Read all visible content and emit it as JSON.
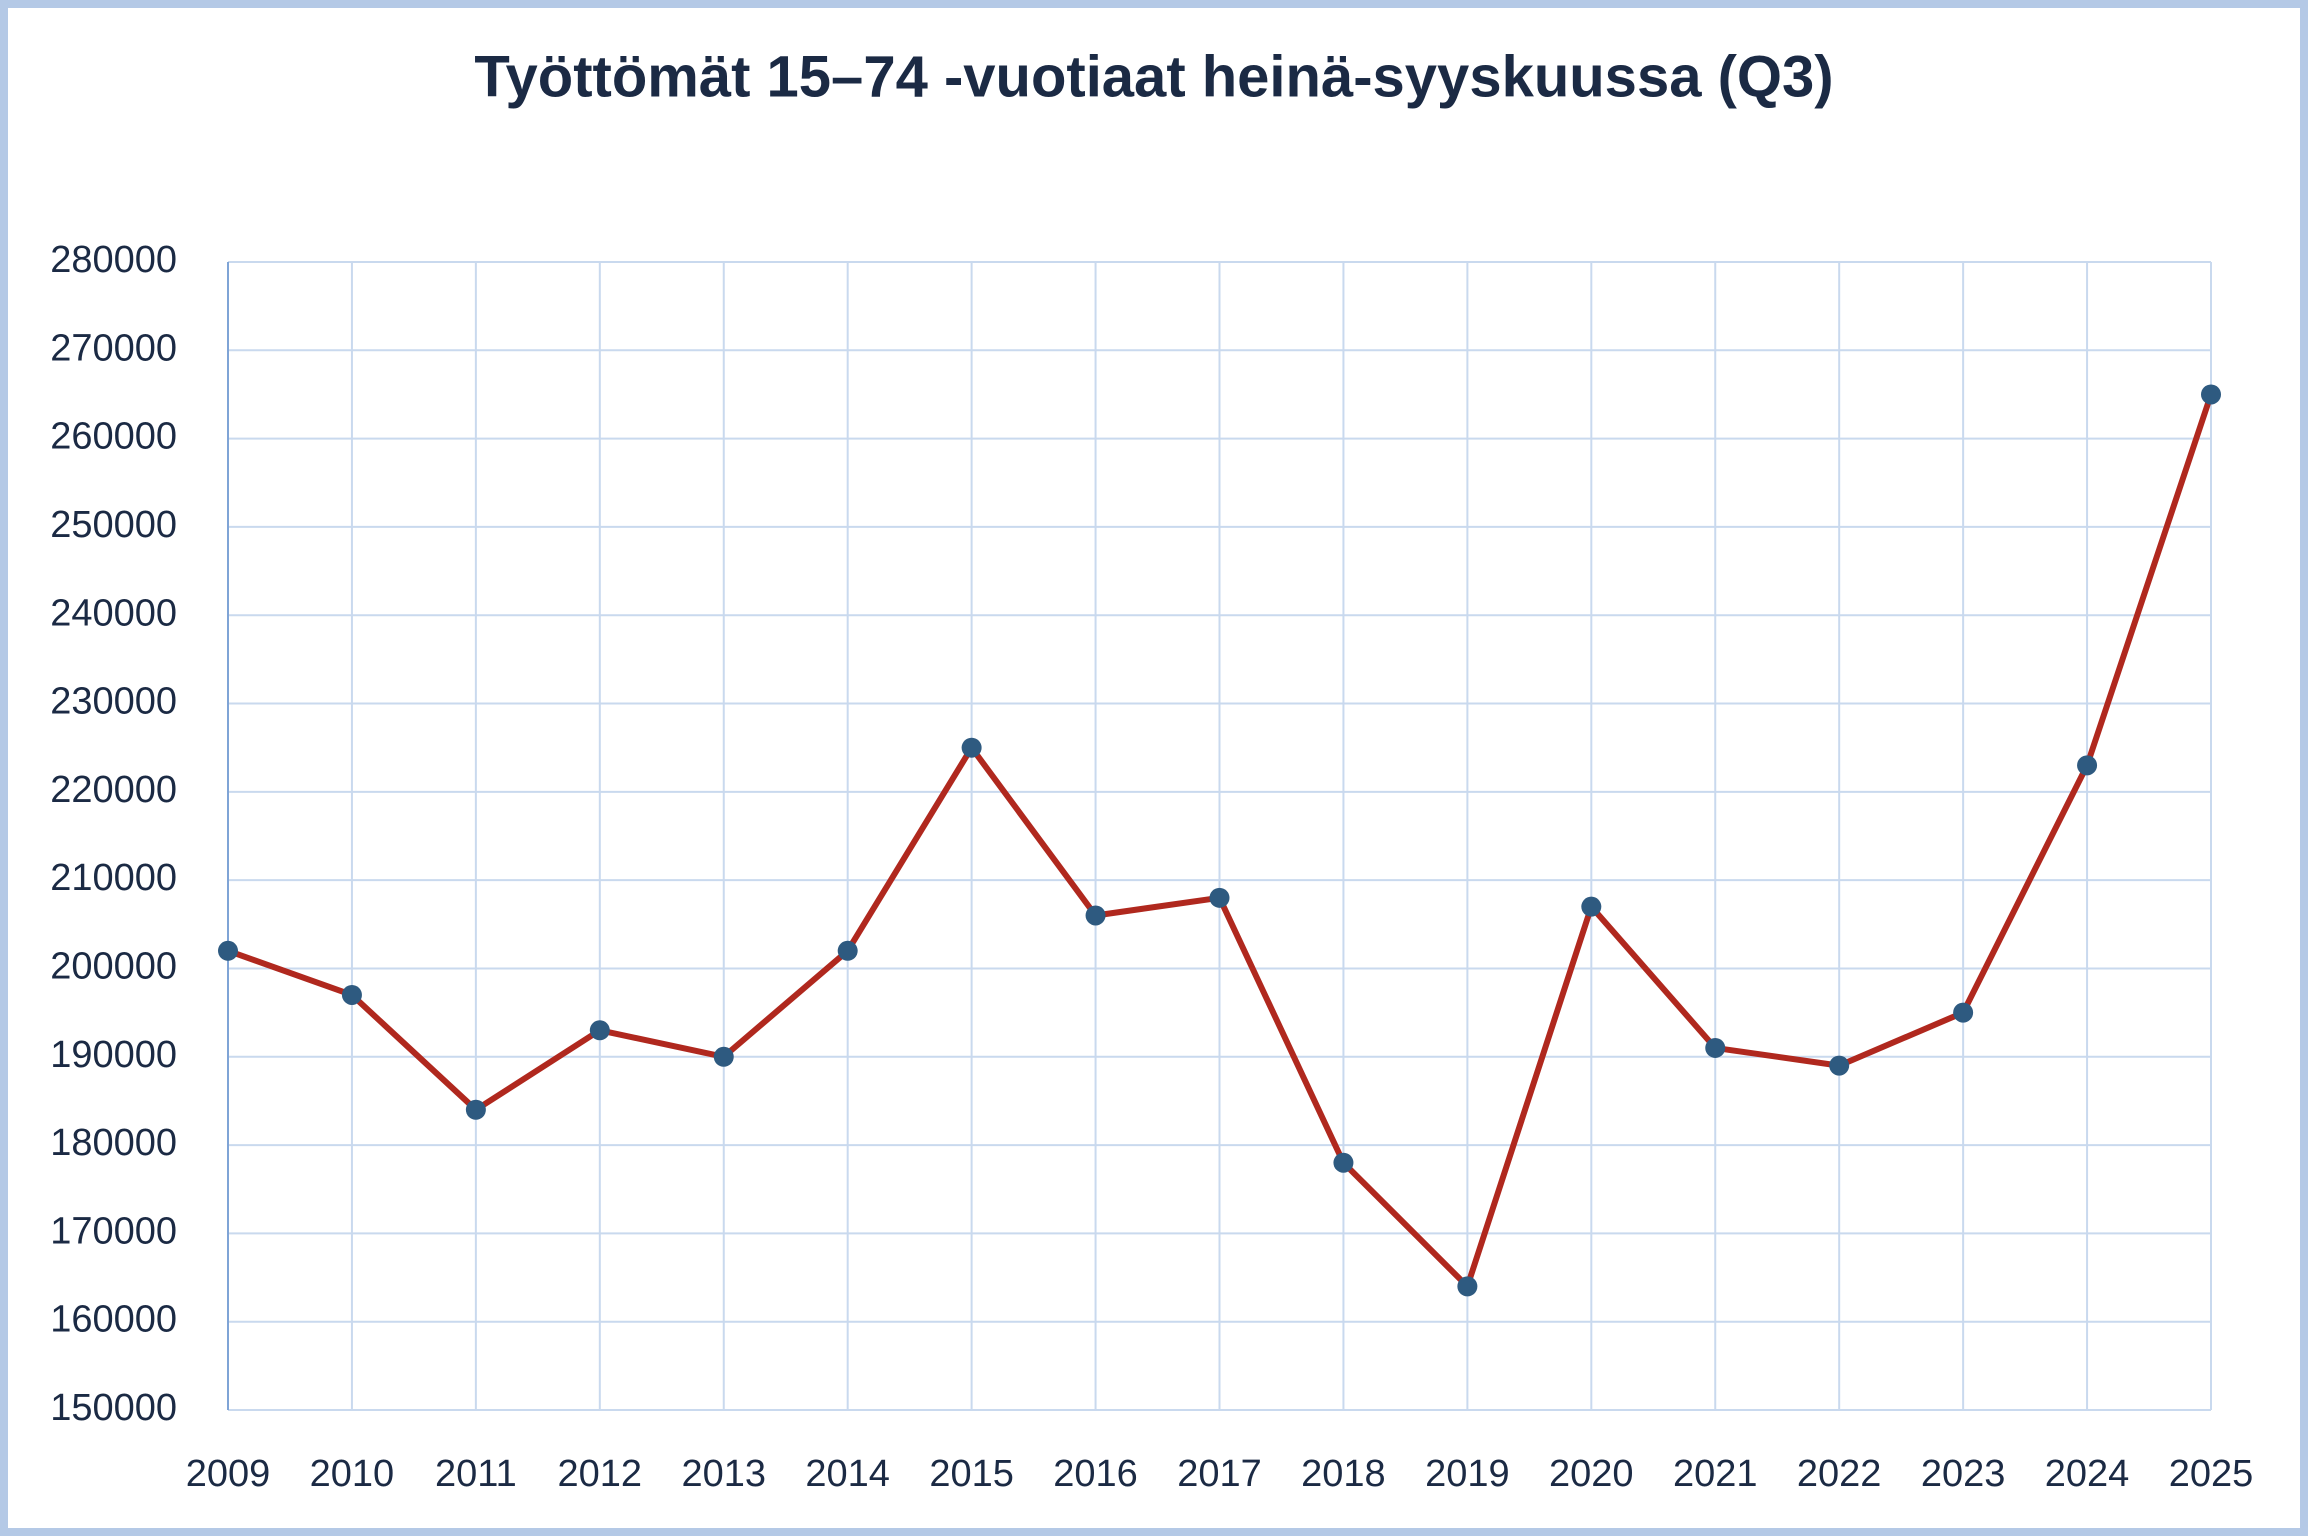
{
  "chart_data": {
    "type": "line",
    "title": "Työttömät 15–74 -vuotiaat heinä-syyskuussa (Q3)",
    "x": [
      2009,
      2010,
      2011,
      2012,
      2013,
      2014,
      2015,
      2016,
      2017,
      2018,
      2019,
      2020,
      2021,
      2022,
      2023,
      2024,
      2025
    ],
    "series": [
      {
        "color": "#b0281e",
        "marker_color": "#2e5a80",
        "values": [
          202000,
          197000,
          184000,
          193000,
          190000,
          202000,
          225000,
          206000,
          208000,
          178000,
          164000,
          207000,
          191000,
          189000,
          195000,
          223000,
          265000
        ]
      }
    ],
    "xlim": [
      2009,
      2025
    ],
    "xticks": [
      2009,
      2010,
      2011,
      2012,
      2013,
      2014,
      2015,
      2016,
      2017,
      2018,
      2019,
      2020,
      2021,
      2022,
      2023,
      2024,
      2025
    ],
    "ylim": [
      150000,
      280000
    ],
    "yticks": [
      150000,
      160000,
      170000,
      180000,
      190000,
      200000,
      210000,
      220000,
      230000,
      240000,
      250000,
      260000,
      270000,
      280000
    ],
    "grid": true
  }
}
